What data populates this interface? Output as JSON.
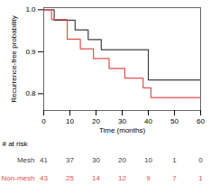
{
  "chart_data": {
    "type": "step",
    "xlabel": "Time (months)",
    "ylabel": "Recurrence-free probability",
    "xlim": [
      0,
      60
    ],
    "ylim": [
      0.76,
      1.005
    ],
    "xticks": [
      0,
      10,
      20,
      30,
      40,
      50,
      60
    ],
    "yticks": [
      0.8,
      0.9,
      {
        "value": 1.0,
        "label": "1.0"
      }
    ],
    "at_risk_label": "# at risk",
    "at_risk_times": [
      0,
      10,
      20,
      30,
      40,
      50,
      60
    ],
    "series": [
      {
        "name": "Mesh",
        "color": "#404040",
        "x": [
          0,
          4,
          4,
          12,
          12,
          17,
          17,
          22,
          22,
          40,
          40,
          60
        ],
        "values": [
          1.0,
          1.0,
          0.975,
          0.975,
          0.952,
          0.952,
          0.929,
          0.929,
          0.905,
          0.905,
          0.833,
          0.833
        ],
        "at_risk": [
          41,
          37,
          30,
          20,
          10,
          1,
          0
        ]
      },
      {
        "name": "Non-mesh",
        "color": "#e05050",
        "x": [
          0,
          3,
          3,
          9,
          9,
          14,
          14,
          19,
          19,
          25,
          25,
          31,
          31,
          38,
          38,
          41,
          41,
          60
        ],
        "values": [
          1.0,
          1.0,
          0.977,
          0.977,
          0.93,
          0.93,
          0.907,
          0.907,
          0.884,
          0.884,
          0.86,
          0.86,
          0.837,
          0.837,
          0.814,
          0.814,
          0.791,
          0.791
        ],
        "at_risk": [
          43,
          25,
          14,
          12,
          9,
          7,
          1
        ]
      }
    ]
  }
}
